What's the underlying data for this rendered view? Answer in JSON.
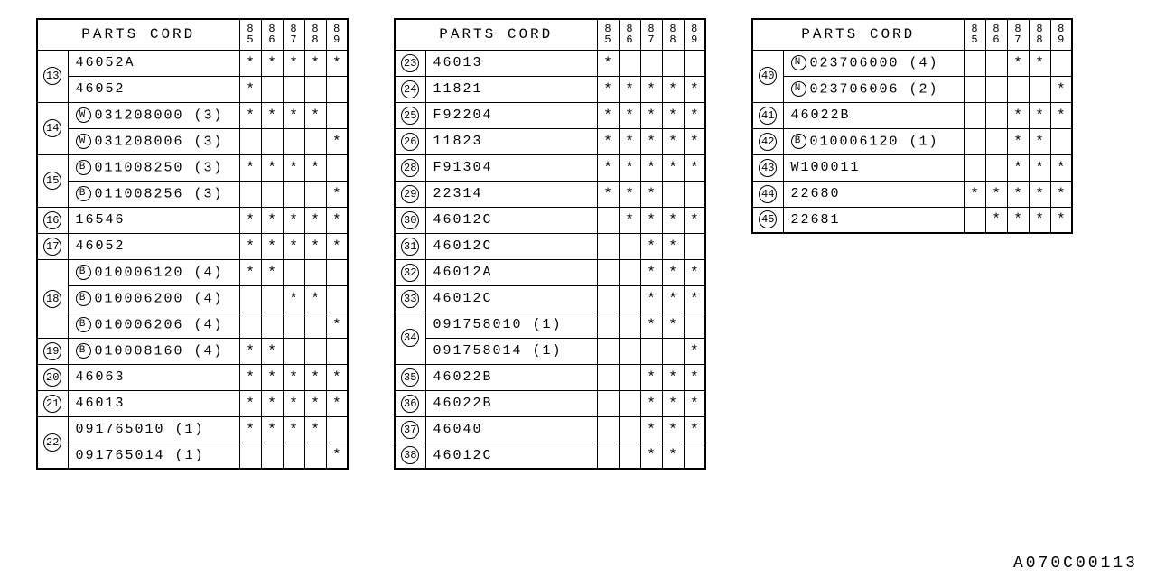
{
  "doc_id": "A070C00113",
  "header": {
    "parts_label": "PARTS CORD",
    "years": [
      "85",
      "86",
      "87",
      "88",
      "89"
    ]
  },
  "colors": {
    "fg": "#000000",
    "bg": "#ffffff"
  },
  "mark_char": "*",
  "tables": [
    {
      "rows": [
        {
          "idx": "13",
          "span": 2,
          "parts": [
            {
              "prefix": "",
              "code": "46052A",
              "marks": [
                1,
                1,
                1,
                1,
                1
              ]
            },
            {
              "prefix": "",
              "code": "46052",
              "marks": [
                1,
                0,
                0,
                0,
                0
              ]
            }
          ]
        },
        {
          "idx": "14",
          "span": 2,
          "parts": [
            {
              "prefix": "W",
              "code": "031208000 (3)",
              "marks": [
                1,
                1,
                1,
                1,
                0
              ]
            },
            {
              "prefix": "W",
              "code": "031208006 (3)",
              "marks": [
                0,
                0,
                0,
                0,
                1
              ]
            }
          ]
        },
        {
          "idx": "15",
          "span": 2,
          "parts": [
            {
              "prefix": "B",
              "code": "011008250 (3)",
              "marks": [
                1,
                1,
                1,
                1,
                0
              ]
            },
            {
              "prefix": "B",
              "code": "011008256 (3)",
              "marks": [
                0,
                0,
                0,
                0,
                1
              ]
            }
          ]
        },
        {
          "idx": "16",
          "span": 1,
          "parts": [
            {
              "prefix": "",
              "code": "16546",
              "marks": [
                1,
                1,
                1,
                1,
                1
              ]
            }
          ]
        },
        {
          "idx": "17",
          "span": 1,
          "parts": [
            {
              "prefix": "",
              "code": "46052",
              "marks": [
                1,
                1,
                1,
                1,
                1
              ]
            }
          ]
        },
        {
          "idx": "18",
          "span": 3,
          "parts": [
            {
              "prefix": "B",
              "code": "010006120 (4)",
              "marks": [
                1,
                1,
                0,
                0,
                0
              ]
            },
            {
              "prefix": "B",
              "code": "010006200 (4)",
              "marks": [
                0,
                0,
                1,
                1,
                0
              ]
            },
            {
              "prefix": "B",
              "code": "010006206 (4)",
              "marks": [
                0,
                0,
                0,
                0,
                1
              ]
            }
          ]
        },
        {
          "idx": "19",
          "span": 1,
          "parts": [
            {
              "prefix": "B",
              "code": "010008160 (4)",
              "marks": [
                1,
                1,
                0,
                0,
                0
              ]
            }
          ]
        },
        {
          "idx": "20",
          "span": 1,
          "parts": [
            {
              "prefix": "",
              "code": "46063",
              "marks": [
                1,
                1,
                1,
                1,
                1
              ]
            }
          ]
        },
        {
          "idx": "21",
          "span": 1,
          "parts": [
            {
              "prefix": "",
              "code": "46013",
              "marks": [
                1,
                1,
                1,
                1,
                1
              ]
            }
          ]
        },
        {
          "idx": "22",
          "span": 2,
          "parts": [
            {
              "prefix": "",
              "code": "091765010 (1)",
              "marks": [
                1,
                1,
                1,
                1,
                0
              ]
            },
            {
              "prefix": "",
              "code": "091765014 (1)",
              "marks": [
                0,
                0,
                0,
                0,
                1
              ]
            }
          ]
        }
      ]
    },
    {
      "rows": [
        {
          "idx": "23",
          "span": 1,
          "parts": [
            {
              "prefix": "",
              "code": "46013",
              "marks": [
                1,
                0,
                0,
                0,
                0
              ]
            }
          ]
        },
        {
          "idx": "24",
          "span": 1,
          "parts": [
            {
              "prefix": "",
              "code": "11821",
              "marks": [
                1,
                1,
                1,
                1,
                1
              ]
            }
          ]
        },
        {
          "idx": "25",
          "span": 1,
          "parts": [
            {
              "prefix": "",
              "code": "F92204",
              "marks": [
                1,
                1,
                1,
                1,
                1
              ]
            }
          ]
        },
        {
          "idx": "26",
          "span": 1,
          "parts": [
            {
              "prefix": "",
              "code": "11823",
              "marks": [
                1,
                1,
                1,
                1,
                1
              ]
            }
          ]
        },
        {
          "idx": "28",
          "span": 1,
          "parts": [
            {
              "prefix": "",
              "code": "F91304",
              "marks": [
                1,
                1,
                1,
                1,
                1
              ]
            }
          ]
        },
        {
          "idx": "29",
          "span": 1,
          "parts": [
            {
              "prefix": "",
              "code": "22314",
              "marks": [
                1,
                1,
                1,
                0,
                0
              ]
            }
          ]
        },
        {
          "idx": "30",
          "span": 1,
          "parts": [
            {
              "prefix": "",
              "code": "46012C",
              "marks": [
                0,
                1,
                1,
                1,
                1
              ]
            }
          ]
        },
        {
          "idx": "31",
          "span": 1,
          "parts": [
            {
              "prefix": "",
              "code": "46012C",
              "marks": [
                0,
                0,
                1,
                1,
                0
              ]
            }
          ]
        },
        {
          "idx": "32",
          "span": 1,
          "parts": [
            {
              "prefix": "",
              "code": "46012A",
              "marks": [
                0,
                0,
                1,
                1,
                1
              ]
            }
          ]
        },
        {
          "idx": "33",
          "span": 1,
          "parts": [
            {
              "prefix": "",
              "code": "46012C",
              "marks": [
                0,
                0,
                1,
                1,
                1
              ]
            }
          ]
        },
        {
          "idx": "34",
          "span": 2,
          "parts": [
            {
              "prefix": "",
              "code": "091758010 (1)",
              "marks": [
                0,
                0,
                1,
                1,
                0
              ]
            },
            {
              "prefix": "",
              "code": "091758014 (1)",
              "marks": [
                0,
                0,
                0,
                0,
                1
              ]
            }
          ]
        },
        {
          "idx": "35",
          "span": 1,
          "parts": [
            {
              "prefix": "",
              "code": "46022B",
              "marks": [
                0,
                0,
                1,
                1,
                1
              ]
            }
          ]
        },
        {
          "idx": "36",
          "span": 1,
          "parts": [
            {
              "prefix": "",
              "code": "46022B",
              "marks": [
                0,
                0,
                1,
                1,
                1
              ]
            }
          ]
        },
        {
          "idx": "37",
          "span": 1,
          "parts": [
            {
              "prefix": "",
              "code": "46040",
              "marks": [
                0,
                0,
                1,
                1,
                1
              ]
            }
          ]
        },
        {
          "idx": "38",
          "span": 1,
          "parts": [
            {
              "prefix": "",
              "code": "46012C",
              "marks": [
                0,
                0,
                1,
                1,
                0
              ]
            }
          ]
        }
      ]
    },
    {
      "rows": [
        {
          "idx": "40",
          "span": 2,
          "parts": [
            {
              "prefix": "N",
              "code": "023706000 (4)",
              "marks": [
                0,
                0,
                1,
                1,
                0
              ]
            },
            {
              "prefix": "N",
              "code": "023706006 (2)",
              "marks": [
                0,
                0,
                0,
                0,
                1
              ]
            }
          ]
        },
        {
          "idx": "41",
          "span": 1,
          "parts": [
            {
              "prefix": "",
              "code": "46022B",
              "marks": [
                0,
                0,
                1,
                1,
                1
              ]
            }
          ]
        },
        {
          "idx": "42",
          "span": 1,
          "parts": [
            {
              "prefix": "B",
              "code": "010006120 (1)",
              "marks": [
                0,
                0,
                1,
                1,
                0
              ]
            }
          ]
        },
        {
          "idx": "43",
          "span": 1,
          "parts": [
            {
              "prefix": "",
              "code": "W100011",
              "marks": [
                0,
                0,
                1,
                1,
                1
              ]
            }
          ]
        },
        {
          "idx": "44",
          "span": 1,
          "parts": [
            {
              "prefix": "",
              "code": "22680",
              "marks": [
                1,
                1,
                1,
                1,
                1
              ]
            }
          ]
        },
        {
          "idx": "45",
          "span": 1,
          "parts": [
            {
              "prefix": "",
              "code": "22681",
              "marks": [
                0,
                1,
                1,
                1,
                1
              ]
            }
          ]
        }
      ]
    }
  ],
  "layout": {
    "table_part_col_widths": [
      190,
      190,
      200
    ]
  }
}
